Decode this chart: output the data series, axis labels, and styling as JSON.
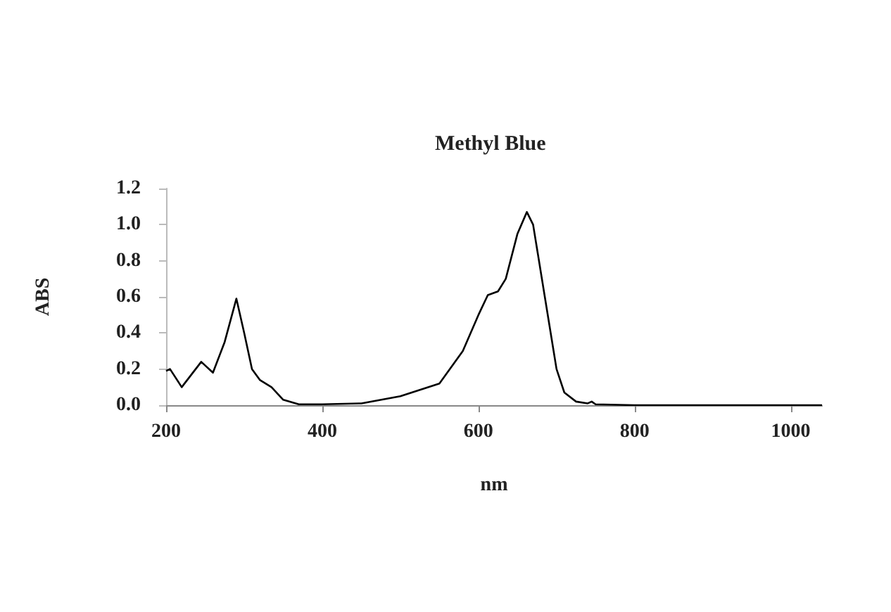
{
  "chart_data": {
    "type": "line",
    "title": "Methyl Blue",
    "xlabel": "nm",
    "ylabel": "ABS",
    "x": [
      200,
      205,
      220,
      245,
      260,
      275,
      290,
      300,
      310,
      320,
      335,
      350,
      370,
      400,
      450,
      500,
      550,
      580,
      600,
      612,
      625,
      635,
      650,
      662,
      670,
      685,
      700,
      710,
      725,
      740,
      745,
      750,
      800,
      900,
      1040
    ],
    "series": [
      {
        "color": "#000000",
        "values": [
          0.19,
          0.2,
          0.1,
          0.24,
          0.18,
          0.35,
          0.59,
          0.4,
          0.2,
          0.14,
          0.1,
          0.03,
          0.005,
          0.005,
          0.01,
          0.05,
          0.12,
          0.3,
          0.5,
          0.61,
          0.63,
          0.7,
          0.95,
          1.07,
          1.0,
          0.6,
          0.2,
          0.07,
          0.02,
          0.01,
          0.02,
          0.005,
          0,
          0,
          0
        ]
      }
    ],
    "xlim": [
      200,
      1040
    ],
    "xticks": [
      200,
      400,
      600,
      800,
      1000
    ],
    "ylim": [
      0,
      1.2
    ],
    "yticks": [
      {
        "value": 0,
        "label": "0.0"
      },
      0.2,
      0.4,
      0.6,
      0.8,
      {
        "value": 1,
        "label": "1.0"
      },
      1.2
    ],
    "grid": false,
    "marker": "none",
    "line_style": "solid"
  }
}
